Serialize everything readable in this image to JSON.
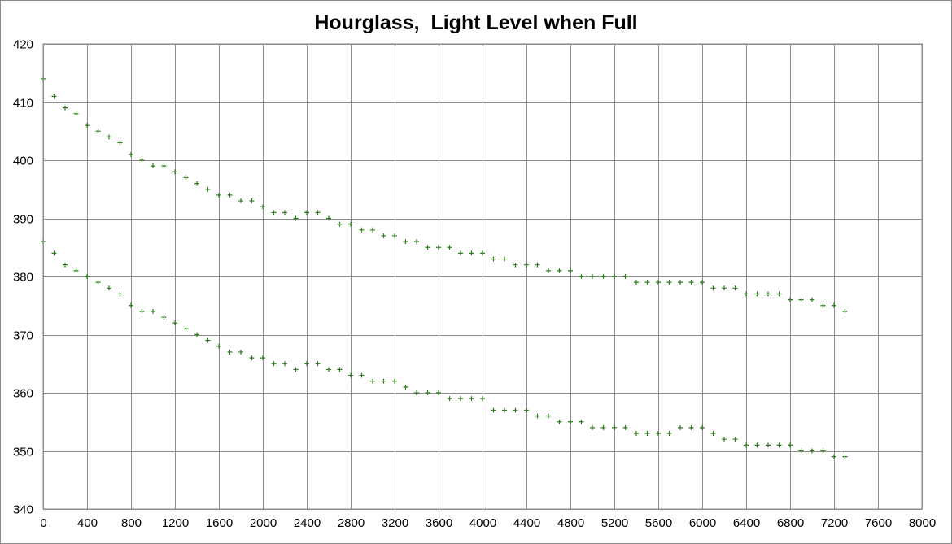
{
  "chart_data": {
    "type": "scatter",
    "title": "Hourglass,  Light Level when Full",
    "xlabel": "",
    "ylabel": "",
    "xlim": [
      0,
      8000
    ],
    "ylim": [
      340,
      420
    ],
    "x_ticks": [
      0,
      400,
      800,
      1200,
      1600,
      2000,
      2400,
      2800,
      3200,
      3600,
      4000,
      4400,
      4800,
      5200,
      5600,
      6000,
      6400,
      6800,
      7200,
      7600,
      8000
    ],
    "y_ticks": [
      340,
      350,
      360,
      370,
      380,
      390,
      400,
      410,
      420
    ],
    "grid": true,
    "legend": "none",
    "marker": "+",
    "color": "#2e7d1e",
    "series": [
      {
        "x": [
          0,
          100,
          200,
          300,
          400,
          500,
          600,
          700,
          800,
          900,
          1000,
          1100,
          1200,
          1300,
          1400,
          1500,
          1600,
          1700,
          1800,
          1900,
          2000,
          2100,
          2200,
          2300,
          2400,
          2500,
          2600,
          2700,
          2800,
          2900,
          3000,
          3100,
          3200,
          3300,
          3400,
          3500,
          3600,
          3700,
          3800,
          3900,
          4000,
          4100,
          4200,
          4300,
          4400,
          4500,
          4600,
          4700,
          4800,
          4900,
          5000,
          5100,
          5200,
          5300,
          5400,
          5500,
          5600,
          5700,
          5800,
          5900,
          6000,
          6100,
          6200,
          6300,
          6400,
          6500,
          6600,
          6700,
          6800,
          6900,
          7000,
          7100,
          7200,
          7300
        ],
        "y": [
          414,
          411,
          409,
          408,
          406,
          405,
          404,
          403,
          401,
          400,
          399,
          399,
          398,
          397,
          396,
          395,
          394,
          394,
          393,
          393,
          392,
          391,
          391,
          390,
          391,
          391,
          390,
          389,
          389,
          388,
          388,
          387,
          387,
          386,
          386,
          385,
          385,
          385,
          384,
          384,
          384,
          383,
          383,
          382,
          382,
          382,
          381,
          381,
          381,
          380,
          380,
          380,
          380,
          380,
          379,
          379,
          379,
          379,
          379,
          379,
          379,
          378,
          378,
          378,
          377,
          377,
          377,
          377,
          376,
          376,
          376,
          375,
          375,
          374
        ]
      },
      {
        "x": [
          0,
          100,
          200,
          300,
          400,
          500,
          600,
          700,
          800,
          900,
          1000,
          1100,
          1200,
          1300,
          1400,
          1500,
          1600,
          1700,
          1800,
          1900,
          2000,
          2100,
          2200,
          2300,
          2400,
          2500,
          2600,
          2700,
          2800,
          2900,
          3000,
          3100,
          3200,
          3300,
          3400,
          3500,
          3600,
          3700,
          3800,
          3900,
          4000,
          4100,
          4200,
          4300,
          4400,
          4500,
          4600,
          4700,
          4800,
          4900,
          5000,
          5100,
          5200,
          5300,
          5400,
          5500,
          5600,
          5700,
          5800,
          5900,
          6000,
          6100,
          6200,
          6300,
          6400,
          6500,
          6600,
          6700,
          6800,
          6900,
          7000,
          7100,
          7200,
          7300
        ],
        "y": [
          386,
          384,
          382,
          381,
          380,
          379,
          378,
          377,
          375,
          374,
          374,
          373,
          372,
          371,
          370,
          369,
          368,
          367,
          367,
          366,
          366,
          365,
          365,
          364,
          365,
          365,
          364,
          364,
          363,
          363,
          362,
          362,
          362,
          361,
          360,
          360,
          360,
          359,
          359,
          359,
          359,
          357,
          357,
          357,
          357,
          356,
          356,
          355,
          355,
          355,
          354,
          354,
          354,
          354,
          353,
          353,
          353,
          353,
          354,
          354,
          354,
          353,
          352,
          352,
          351,
          351,
          351,
          351,
          351,
          350,
          350,
          350,
          349,
          349
        ]
      }
    ]
  }
}
